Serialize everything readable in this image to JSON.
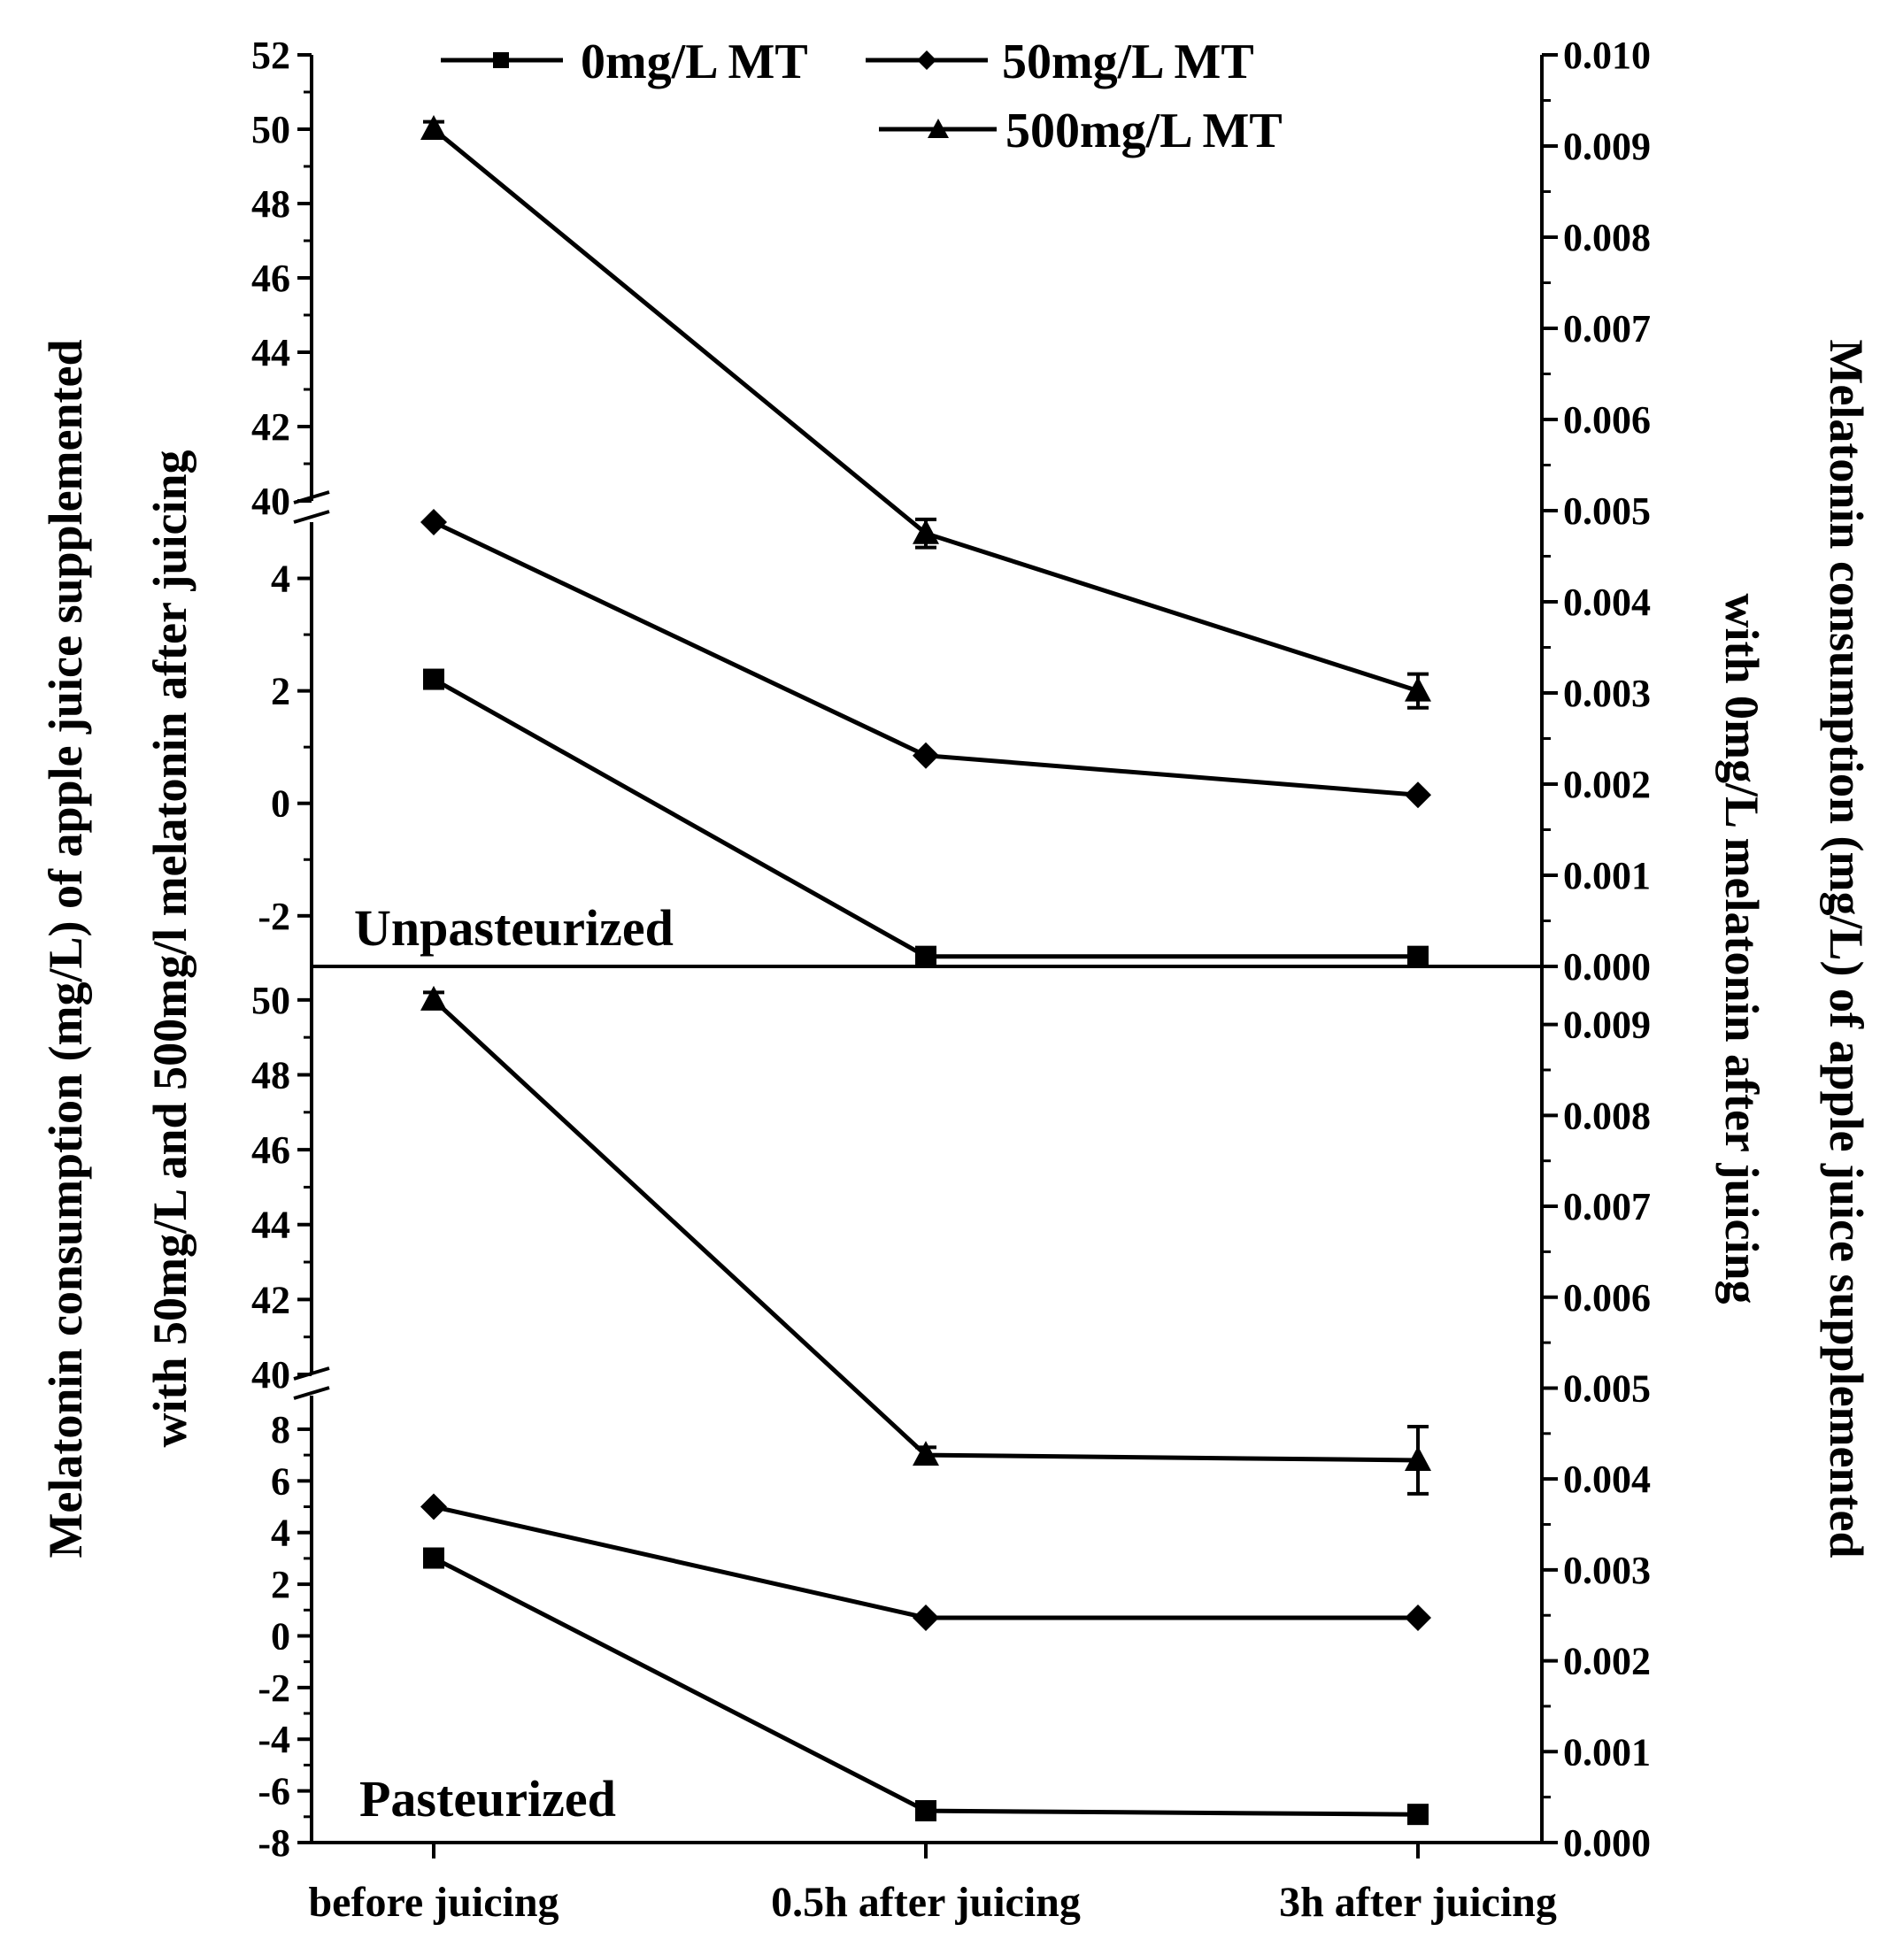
{
  "chart_data": {
    "type": "line",
    "categories": [
      "before juicing",
      "0.5h after juicing",
      "3h after juicing"
    ],
    "legend": {
      "placement": "top",
      "entries": [
        {
          "label": "0mg/L MT",
          "marker": "square"
        },
        {
          "label": "50mg/L MT",
          "marker": "diamond"
        },
        {
          "label": "500mg/L MT",
          "marker": "triangle"
        }
      ]
    },
    "ylabel_left": {
      "line1": "Melatonin consumption (mg/L) of  apple juice supplemented",
      "line2": "with 50mg/L and 500mg/l melatonin after juicing"
    },
    "ylabel_right": {
      "line1": "Melatonin consumption (mg/L) of apple juice supplemented",
      "line2": "with 0mg/L melatonin after juicing"
    },
    "panels": [
      {
        "name": "Unpasteurized",
        "left_axis": {
          "broken": true,
          "lower_range": [
            -2.9,
            5.0
          ],
          "upper_range": [
            40,
            52
          ],
          "lower_ticks": [
            "-2",
            "0",
            "2",
            "4"
          ],
          "upper_ticks": [
            "40",
            "42",
            "44",
            "46",
            "48",
            "50",
            "52"
          ]
        },
        "right_axis": {
          "range": [
            0.0,
            0.01
          ],
          "ticks": [
            "0.000",
            "0.001",
            "0.002",
            "0.003",
            "0.004",
            "0.005",
            "0.006",
            "0.007",
            "0.008",
            "0.009",
            "0.010"
          ]
        },
        "series": [
          {
            "name": "0mg/L MT",
            "axis": "right",
            "values": [
              0.00315,
              0.00011,
              0.00011
            ],
            "errors": [
              4e-05,
              3e-05,
              3e-05
            ]
          },
          {
            "name": "50mg/L MT",
            "axis": "left",
            "values": [
              5.0,
              0.85,
              0.15
            ],
            "errors": [
              0.0,
              0.0,
              0.0
            ]
          },
          {
            "name": "500mg/L MT",
            "axis": "left",
            "values": [
              50.0,
              4.8,
              2.0
            ],
            "errors": [
              0.2,
              0.25,
              0.3
            ]
          }
        ]
      },
      {
        "name": "Pasteurized",
        "left_axis": {
          "broken": true,
          "lower_range": [
            -8,
            9.3
          ],
          "upper_range": [
            40,
            50.8
          ],
          "lower_ticks": [
            "-8",
            "-6",
            "-4",
            "-2",
            "0",
            "2",
            "4",
            "6",
            "8"
          ],
          "upper_ticks": [
            "40",
            "42",
            "44",
            "46",
            "48",
            "50"
          ]
        },
        "right_axis": {
          "range": [
            0.0,
            0.0096
          ],
          "ticks": [
            "0.000",
            "0.001",
            "0.002",
            "0.003",
            "0.004",
            "0.005",
            "0.006",
            "0.007",
            "0.008",
            "0.009"
          ]
        },
        "series": [
          {
            "name": "0mg/L MT",
            "axis": "right",
            "values": [
              0.00313,
              0.00035,
              0.00031
            ],
            "errors": [
              0.0,
              0.0,
              0.0
            ]
          },
          {
            "name": "50mg/L MT",
            "axis": "left",
            "values": [
              5.0,
              0.7,
              0.7
            ],
            "errors": [
              0.0,
              0.0,
              0.0
            ]
          },
          {
            "name": "500mg/L MT",
            "axis": "left",
            "values": [
              50.0,
              7.0,
              6.8
            ],
            "errors": [
              0.2,
              0.3,
              1.3
            ]
          }
        ]
      }
    ]
  }
}
